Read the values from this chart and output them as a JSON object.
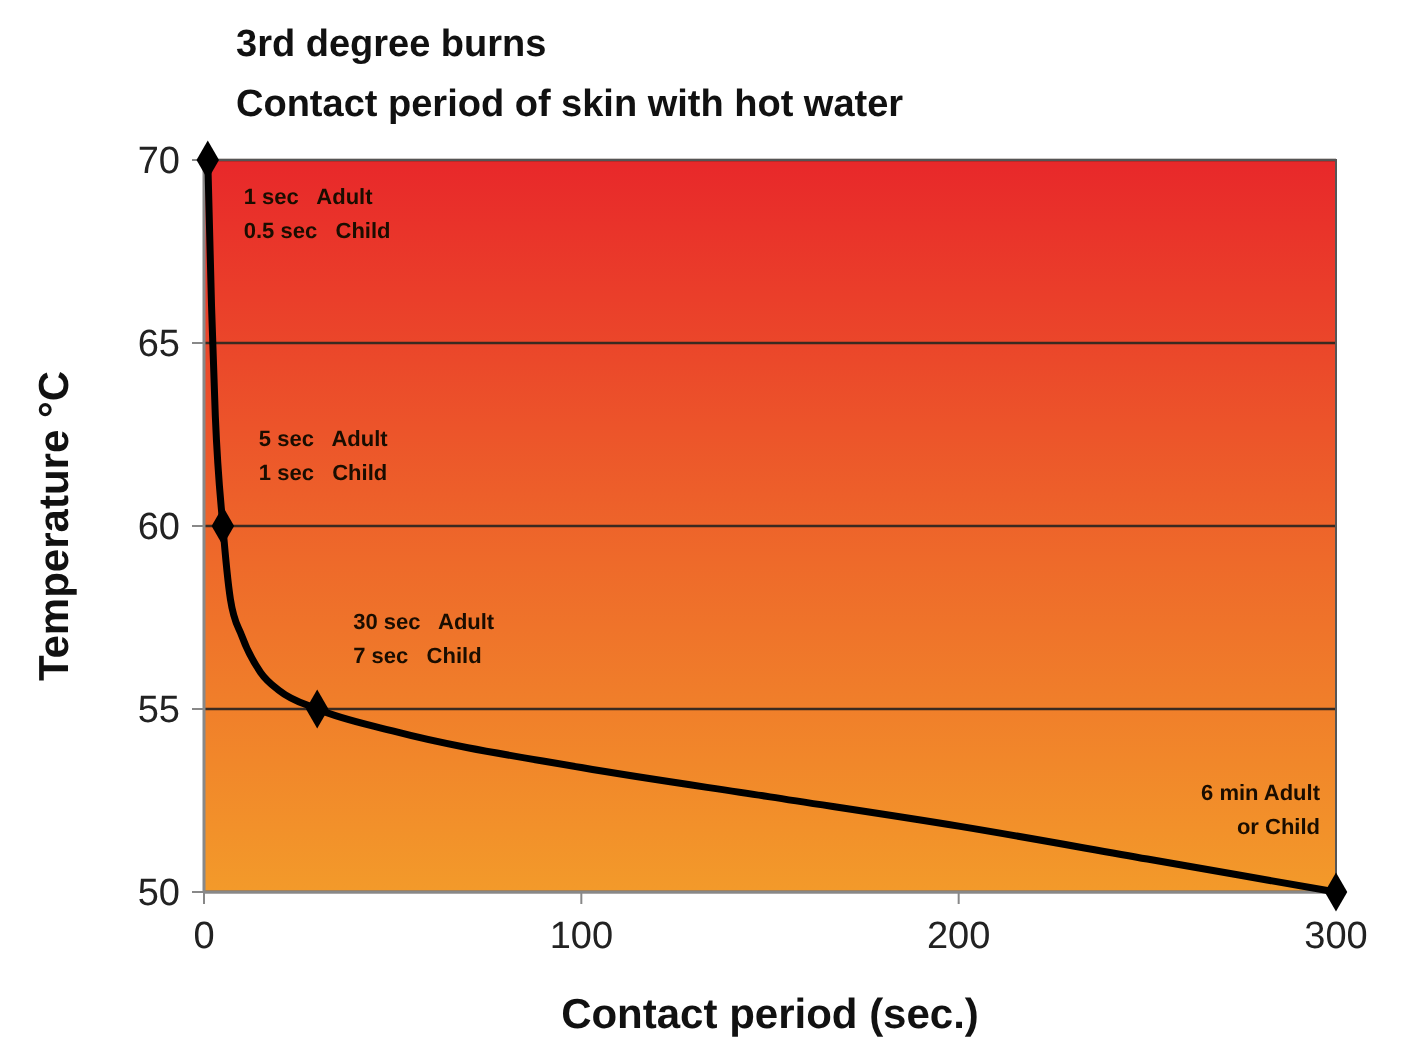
{
  "chart_data": {
    "type": "line",
    "title": "3rd degree burns",
    "subtitle": "Contact period of skin with hot water",
    "xlabel": "Contact period (sec.)",
    "ylabel": "Temperature °C",
    "xlim": [
      0,
      300
    ],
    "xticks": [
      0,
      100,
      200,
      300
    ],
    "ylim": [
      50,
      70
    ],
    "yticks": [
      50,
      55,
      60,
      65,
      70
    ],
    "grid": "y",
    "series": [
      {
        "color": "#000000",
        "marker": "none",
        "x": [
          1,
          2,
          3,
          5,
          7,
          10,
          15,
          20,
          30,
          50,
          100,
          150,
          200,
          250,
          300
        ],
        "values": [
          70,
          66,
          63,
          60,
          58,
          57,
          56,
          55.5,
          55,
          54.4,
          53.4,
          52.6,
          51.8,
          50.9,
          50
        ]
      },
      {
        "type": "scatter",
        "color": "#000000",
        "marker": "diamond",
        "x": [
          1,
          5,
          30,
          300
        ],
        "values": [
          70,
          60,
          55,
          50
        ]
      }
    ],
    "annotations": [
      {
        "text": "1 sec   Adult\n0.5 sec   Child",
        "x": 1,
        "y": 70
      },
      {
        "text": "5 sec   Adult\n1 sec   Child",
        "x": 5,
        "y": 60
      },
      {
        "text": "30 sec   Adult\n7 sec   Child",
        "x": 30,
        "y": 55
      },
      {
        "text": "6 min Adult\nor Child",
        "x": 300,
        "y": 50
      }
    ]
  }
}
